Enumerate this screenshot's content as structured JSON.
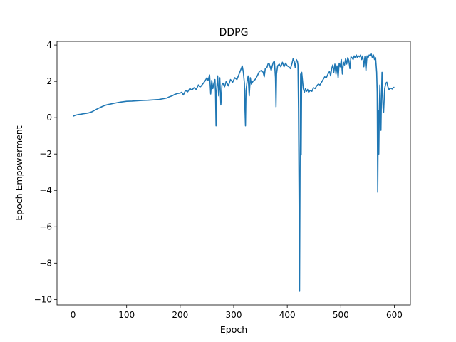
{
  "chart_data": {
    "type": "line",
    "title": "DDPG",
    "xlabel": "Epoch",
    "ylabel": "Epoch Empowerment",
    "xlim": [
      -30,
      630
    ],
    "ylim": [
      -10.3,
      4.2
    ],
    "xticks": [
      0,
      100,
      200,
      300,
      400,
      500,
      600
    ],
    "yticks": [
      -10,
      -8,
      -6,
      -4,
      -2,
      0,
      2,
      4
    ],
    "grid": false,
    "series": [
      {
        "color": "#1f77b4",
        "points": [
          [
            0,
            0.08
          ],
          [
            5,
            0.14
          ],
          [
            10,
            0.17
          ],
          [
            15,
            0.19
          ],
          [
            20,
            0.22
          ],
          [
            25,
            0.24
          ],
          [
            30,
            0.27
          ],
          [
            35,
            0.32
          ],
          [
            40,
            0.4
          ],
          [
            45,
            0.48
          ],
          [
            50,
            0.55
          ],
          [
            55,
            0.62
          ],
          [
            60,
            0.68
          ],
          [
            65,
            0.72
          ],
          [
            70,
            0.75
          ],
          [
            75,
            0.78
          ],
          [
            80,
            0.81
          ],
          [
            85,
            0.84
          ],
          [
            90,
            0.86
          ],
          [
            95,
            0.88
          ],
          [
            100,
            0.9
          ],
          [
            110,
            0.91
          ],
          [
            120,
            0.93
          ],
          [
            130,
            0.95
          ],
          [
            140,
            0.96
          ],
          [
            150,
            0.98
          ],
          [
            160,
            1.0
          ],
          [
            170,
            1.05
          ],
          [
            175,
            1.08
          ],
          [
            180,
            1.15
          ],
          [
            185,
            1.2
          ],
          [
            190,
            1.28
          ],
          [
            195,
            1.33
          ],
          [
            200,
            1.35
          ],
          [
            203,
            1.4
          ],
          [
            206,
            1.25
          ],
          [
            210,
            1.5
          ],
          [
            214,
            1.42
          ],
          [
            218,
            1.6
          ],
          [
            222,
            1.52
          ],
          [
            226,
            1.65
          ],
          [
            230,
            1.55
          ],
          [
            234,
            1.8
          ],
          [
            238,
            1.7
          ],
          [
            242,
            1.85
          ],
          [
            246,
            2.0
          ],
          [
            250,
            2.2
          ],
          [
            252,
            2.05
          ],
          [
            255,
            2.35
          ],
          [
            257,
            1.3
          ],
          [
            259,
            2.05
          ],
          [
            261,
            1.6
          ],
          [
            263,
            1.9
          ],
          [
            265,
            2.1
          ],
          [
            266,
            1.4
          ],
          [
            267,
            -0.45
          ],
          [
            268,
            1.5
          ],
          [
            270,
            2.3
          ],
          [
            272,
            1.2
          ],
          [
            274,
            2.2
          ],
          [
            276,
            0.7
          ],
          [
            278,
            1.8
          ],
          [
            280,
            1.9
          ],
          [
            283,
            1.7
          ],
          [
            286,
            2.0
          ],
          [
            290,
            1.75
          ],
          [
            294,
            2.1
          ],
          [
            298,
            1.95
          ],
          [
            302,
            2.2
          ],
          [
            306,
            2.1
          ],
          [
            310,
            2.4
          ],
          [
            314,
            2.7
          ],
          [
            316,
            2.85
          ],
          [
            318,
            2.5
          ],
          [
            320,
            1.9
          ],
          [
            321,
            0.5
          ],
          [
            322,
            -0.45
          ],
          [
            323,
            1.5
          ],
          [
            325,
            2.0
          ],
          [
            327,
            2.3
          ],
          [
            329,
            1.2
          ],
          [
            331,
            2.2
          ],
          [
            333,
            1.85
          ],
          [
            336,
            2.0
          ],
          [
            340,
            2.1
          ],
          [
            344,
            2.3
          ],
          [
            348,
            2.55
          ],
          [
            352,
            2.6
          ],
          [
            355,
            2.5
          ],
          [
            357,
            2.25
          ],
          [
            359,
            2.7
          ],
          [
            362,
            2.75
          ],
          [
            364,
            2.95
          ],
          [
            366,
            3.0
          ],
          [
            368,
            2.8
          ],
          [
            370,
            2.6
          ],
          [
            372,
            2.85
          ],
          [
            374,
            3.05
          ],
          [
            376,
            3.1
          ],
          [
            378,
            2.2
          ],
          [
            379,
            0.6
          ],
          [
            380,
            2.4
          ],
          [
            382,
            2.85
          ],
          [
            385,
            2.95
          ],
          [
            388,
            2.8
          ],
          [
            391,
            3.05
          ],
          [
            394,
            2.8
          ],
          [
            397,
            3.0
          ],
          [
            400,
            2.85
          ],
          [
            403,
            2.8
          ],
          [
            406,
            2.7
          ],
          [
            409,
            3.0
          ],
          [
            411,
            3.25
          ],
          [
            413,
            3.1
          ],
          [
            415,
            2.75
          ],
          [
            417,
            3.2
          ],
          [
            419,
            3.1
          ],
          [
            420,
            2.9
          ],
          [
            421,
            0.5
          ],
          [
            422,
            -4.0
          ],
          [
            423,
            -9.55
          ],
          [
            424,
            -2.0
          ],
          [
            425,
            2.4
          ],
          [
            426,
            -2.05
          ],
          [
            427,
            2.5
          ],
          [
            428,
            2.2
          ],
          [
            430,
            1.6
          ],
          [
            432,
            1.4
          ],
          [
            434,
            1.6
          ],
          [
            436,
            1.45
          ],
          [
            438,
            1.55
          ],
          [
            440,
            1.4
          ],
          [
            443,
            1.5
          ],
          [
            446,
            1.45
          ],
          [
            449,
            1.65
          ],
          [
            452,
            1.6
          ],
          [
            455,
            1.75
          ],
          [
            458,
            1.85
          ],
          [
            461,
            1.8
          ],
          [
            464,
            1.95
          ],
          [
            467,
            2.1
          ],
          [
            470,
            2.25
          ],
          [
            473,
            2.2
          ],
          [
            476,
            2.4
          ],
          [
            479,
            2.55
          ],
          [
            481,
            2.3
          ],
          [
            483,
            2.7
          ],
          [
            485,
            2.9
          ],
          [
            487,
            2.5
          ],
          [
            489,
            2.95
          ],
          [
            491,
            2.4
          ],
          [
            493,
            2.85
          ],
          [
            495,
            2.2
          ],
          [
            497,
            3.0
          ],
          [
            499,
            2.8
          ],
          [
            501,
            3.2
          ],
          [
            503,
            2.4
          ],
          [
            505,
            3.05
          ],
          [
            507,
            2.9
          ],
          [
            509,
            3.25
          ],
          [
            511,
            2.95
          ],
          [
            513,
            3.3
          ],
          [
            515,
            3.15
          ],
          [
            517,
            2.7
          ],
          [
            519,
            3.35
          ],
          [
            521,
            3.3
          ],
          [
            523,
            3.2
          ],
          [
            525,
            3.4
          ],
          [
            527,
            3.3
          ],
          [
            529,
            3.45
          ],
          [
            531,
            3.3
          ],
          [
            533,
            3.4
          ],
          [
            535,
            3.35
          ],
          [
            537,
            3.45
          ],
          [
            539,
            3.2
          ],
          [
            541,
            3.4
          ],
          [
            543,
            2.8
          ],
          [
            545,
            3.35
          ],
          [
            547,
            2.6
          ],
          [
            549,
            3.4
          ],
          [
            551,
            3.3
          ],
          [
            553,
            3.45
          ],
          [
            555,
            3.4
          ],
          [
            557,
            3.5
          ],
          [
            559,
            3.3
          ],
          [
            561,
            3.45
          ],
          [
            563,
            3.2
          ],
          [
            565,
            3.3
          ],
          [
            567,
            2.5
          ],
          [
            568,
            1.4
          ],
          [
            569,
            -4.1
          ],
          [
            570,
            0.4
          ],
          [
            571,
            -2.0
          ],
          [
            572,
            0.5
          ],
          [
            573,
            1.8
          ],
          [
            574,
            0.3
          ],
          [
            575,
            -0.7
          ],
          [
            576,
            1.2
          ],
          [
            577,
            2.5
          ],
          [
            578,
            1.3
          ],
          [
            579,
            0.5
          ],
          [
            580,
            0.3
          ],
          [
            581,
            1.0
          ],
          [
            582,
            1.6
          ],
          [
            584,
            1.9
          ],
          [
            586,
            1.95
          ],
          [
            588,
            1.7
          ],
          [
            590,
            1.55
          ],
          [
            592,
            1.6
          ],
          [
            594,
            1.62
          ],
          [
            596,
            1.58
          ],
          [
            598,
            1.65
          ],
          [
            600,
            1.68
          ]
        ]
      }
    ]
  }
}
